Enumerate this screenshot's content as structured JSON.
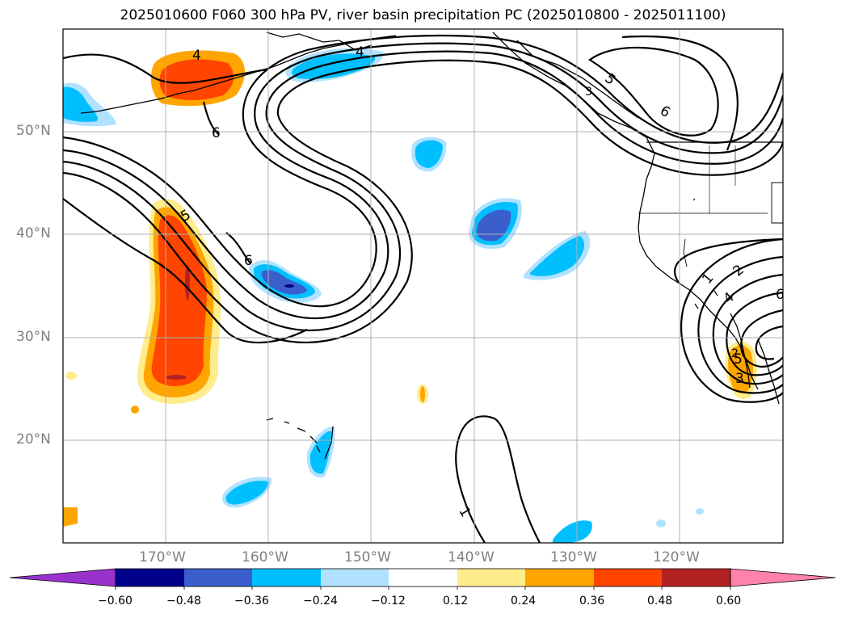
{
  "title": "2025010600 F060 300 hPa PV, river basin precipitation PC (2025010800 - 2025011100)",
  "lat_labels": [
    "50°N",
    "40°N",
    "30°N",
    "20°N"
  ],
  "lon_labels": [
    "170°W",
    "160°W",
    "150°W",
    "140°W",
    "130°W",
    "120°W"
  ],
  "contour_labels": [
    "4",
    "6",
    "5",
    "6",
    "4",
    "5",
    "6",
    "1",
    "2",
    "4",
    "5",
    "3",
    "6",
    "1",
    "2",
    "3"
  ],
  "colorbar": {
    "ticks": [
      "−0.60",
      "−0.48",
      "−0.36",
      "−0.24",
      "−0.12",
      "0.12",
      "0.24",
      "0.36",
      "0.48",
      "0.60"
    ],
    "colors": [
      "#9932cc",
      "#00008b",
      "#3a5fcd",
      "#00bfff",
      "#b0e2ff",
      "#ffffff",
      "#ffec8b",
      "#ffa500",
      "#ff4500",
      "#b22222",
      "#ff82ab"
    ]
  }
}
